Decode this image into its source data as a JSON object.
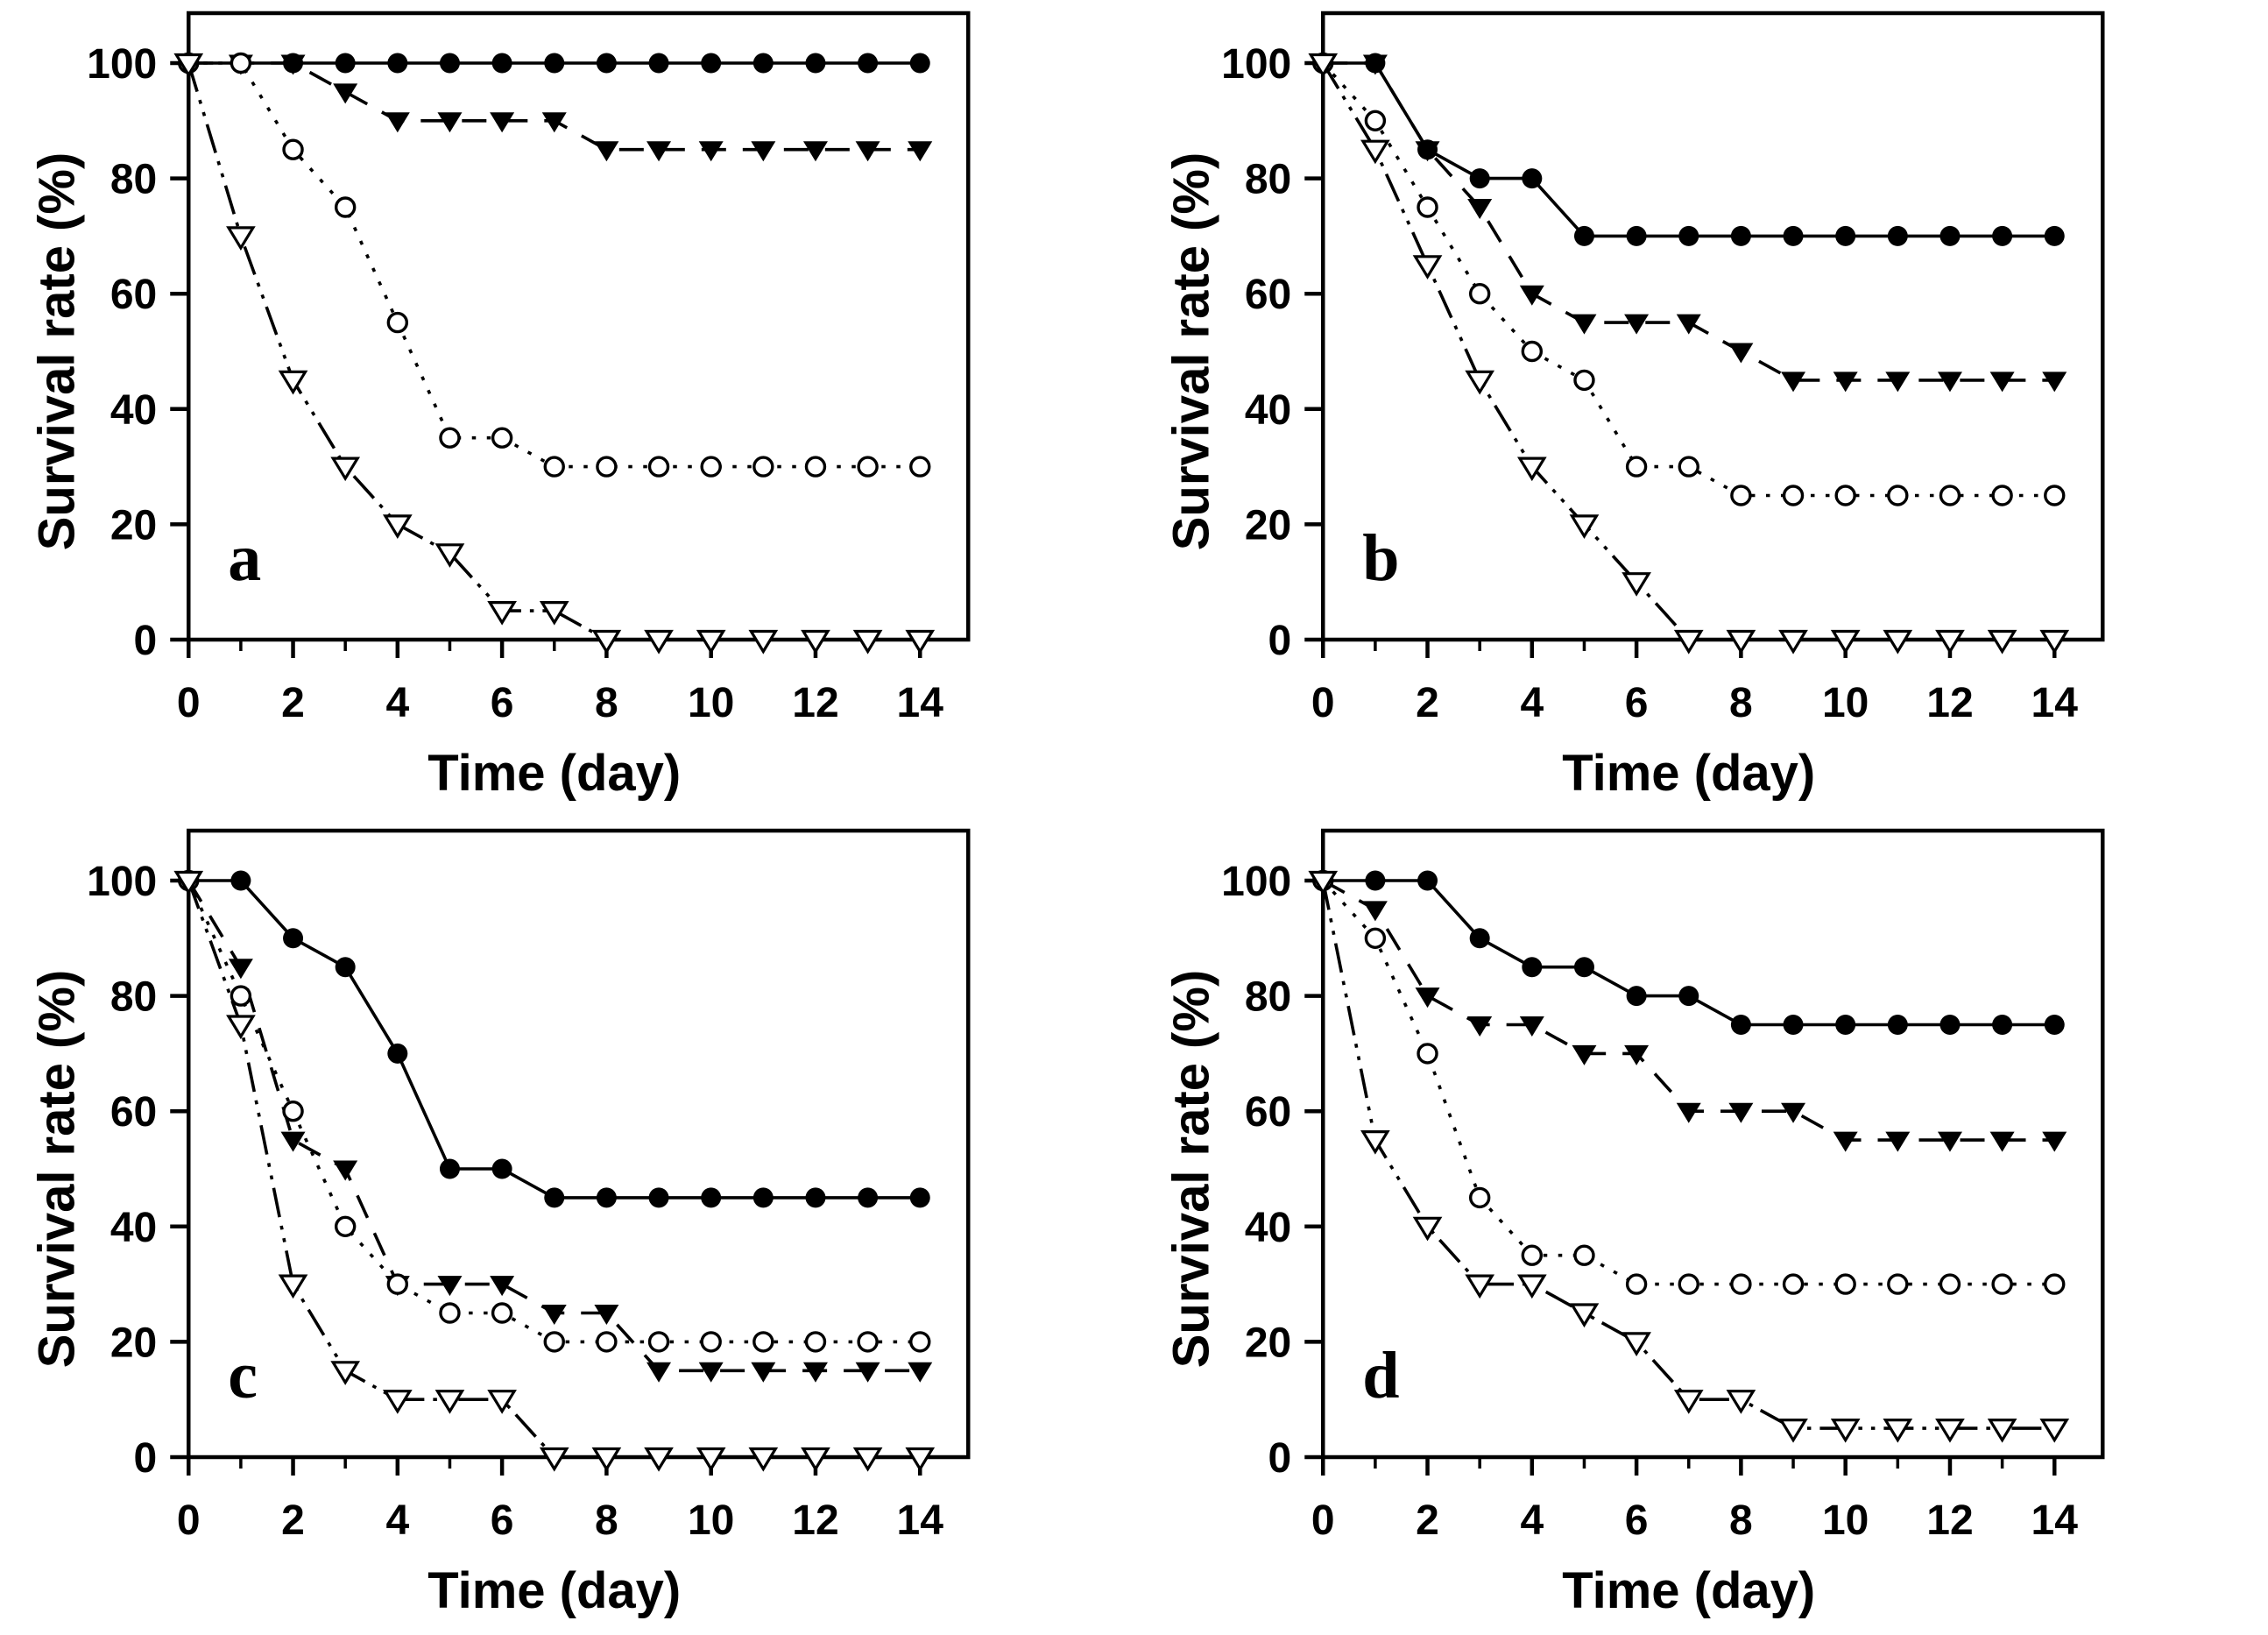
{
  "figure": {
    "ylabel": "Survival rate (%)",
    "xlabel": "Time (day)",
    "x_ticks": [
      0,
      2,
      4,
      6,
      8,
      10,
      12,
      14
    ],
    "x_minor_ticks": [
      1,
      3,
      5,
      7,
      9,
      11,
      13
    ],
    "y_ticks": [
      0,
      20,
      40,
      60,
      80,
      100
    ],
    "xlim": [
      0,
      14
    ],
    "ylim": [
      0,
      100
    ],
    "ink_color": "#000000",
    "background_color": "#ffffff"
  },
  "chart_data": [
    {
      "type": "line",
      "panel_label": "a",
      "title": "",
      "xlabel": "Time (day)",
      "ylabel": "Survival rate (%)",
      "x": [
        0,
        1,
        2,
        3,
        4,
        5,
        6,
        7,
        8,
        9,
        10,
        11,
        12,
        13,
        14
      ],
      "series": [
        {
          "name": "filled-circle-group",
          "marker": "filled-circle",
          "line": "solid",
          "values": [
            100,
            100,
            100,
            100,
            100,
            100,
            100,
            100,
            100,
            100,
            100,
            100,
            100,
            100,
            100
          ]
        },
        {
          "name": "filled-triangle-group",
          "marker": "filled-triangle-down",
          "line": "dash",
          "values": [
            100,
            100,
            100,
            95,
            90,
            90,
            90,
            90,
            85,
            85,
            85,
            85,
            85,
            85,
            85
          ]
        },
        {
          "name": "open-circle-group",
          "marker": "open-circle",
          "line": "dot",
          "values": [
            100,
            100,
            85,
            75,
            55,
            35,
            35,
            30,
            30,
            30,
            30,
            30,
            30,
            30,
            30
          ]
        },
        {
          "name": "open-triangle-group",
          "marker": "open-triangle-down",
          "line": "dash-dot-dot",
          "values": [
            100,
            70,
            45,
            30,
            20,
            15,
            5,
            5,
            0,
            0,
            0,
            0,
            0,
            0,
            0
          ]
        }
      ]
    },
    {
      "type": "line",
      "panel_label": "b",
      "title": "",
      "xlabel": "Time (day)",
      "ylabel": "Survival rate (%)",
      "x": [
        0,
        1,
        2,
        3,
        4,
        5,
        6,
        7,
        8,
        9,
        10,
        11,
        12,
        13,
        14
      ],
      "series": [
        {
          "name": "filled-circle-group",
          "marker": "filled-circle",
          "line": "solid",
          "values": [
            100,
            100,
            85,
            80,
            80,
            70,
            70,
            70,
            70,
            70,
            70,
            70,
            70,
            70,
            70
          ]
        },
        {
          "name": "filled-triangle-group",
          "marker": "filled-triangle-down",
          "line": "dash",
          "values": [
            100,
            100,
            85,
            75,
            60,
            55,
            55,
            55,
            50,
            45,
            45,
            45,
            45,
            45,
            45
          ]
        },
        {
          "name": "open-circle-group",
          "marker": "open-circle",
          "line": "dot",
          "values": [
            100,
            90,
            75,
            60,
            50,
            45,
            30,
            30,
            25,
            25,
            25,
            25,
            25,
            25,
            25
          ]
        },
        {
          "name": "open-triangle-group",
          "marker": "open-triangle-down",
          "line": "dash-dot-dot",
          "values": [
            100,
            85,
            65,
            45,
            30,
            20,
            10,
            0,
            0,
            0,
            0,
            0,
            0,
            0,
            0
          ]
        }
      ]
    },
    {
      "type": "line",
      "panel_label": "c",
      "title": "",
      "xlabel": "Time (day)",
      "ylabel": "Survival rate (%)",
      "x": [
        0,
        1,
        2,
        3,
        4,
        5,
        6,
        7,
        8,
        9,
        10,
        11,
        12,
        13,
        14
      ],
      "series": [
        {
          "name": "filled-circle-group",
          "marker": "filled-circle",
          "line": "solid",
          "values": [
            100,
            100,
            90,
            85,
            70,
            50,
            50,
            45,
            45,
            45,
            45,
            45,
            45,
            45,
            45
          ]
        },
        {
          "name": "filled-triangle-group",
          "marker": "filled-triangle-down",
          "line": "dash",
          "values": [
            100,
            85,
            55,
            50,
            30,
            30,
            30,
            25,
            25,
            15,
            15,
            15,
            15,
            15,
            15
          ]
        },
        {
          "name": "open-circle-group",
          "marker": "open-circle",
          "line": "dot",
          "values": [
            100,
            80,
            60,
            40,
            30,
            25,
            25,
            20,
            20,
            20,
            20,
            20,
            20,
            20,
            20
          ]
        },
        {
          "name": "open-triangle-group",
          "marker": "open-triangle-down",
          "line": "dash-dot-dot",
          "values": [
            100,
            75,
            30,
            15,
            10,
            10,
            10,
            0,
            0,
            0,
            0,
            0,
            0,
            0,
            0
          ]
        }
      ]
    },
    {
      "type": "line",
      "panel_label": "d",
      "title": "",
      "xlabel": "Time (day)",
      "ylabel": "Survival rate (%)",
      "x": [
        0,
        1,
        2,
        3,
        4,
        5,
        6,
        7,
        8,
        9,
        10,
        11,
        12,
        13,
        14
      ],
      "series": [
        {
          "name": "filled-circle-group",
          "marker": "filled-circle",
          "line": "solid",
          "values": [
            100,
            100,
            100,
            90,
            85,
            85,
            80,
            80,
            75,
            75,
            75,
            75,
            75,
            75,
            75
          ]
        },
        {
          "name": "filled-triangle-group",
          "marker": "filled-triangle-down",
          "line": "dash",
          "values": [
            100,
            95,
            80,
            75,
            75,
            70,
            70,
            60,
            60,
            60,
            55,
            55,
            55,
            55,
            55
          ]
        },
        {
          "name": "open-circle-group",
          "marker": "open-circle",
          "line": "dot",
          "values": [
            100,
            90,
            70,
            45,
            35,
            35,
            30,
            30,
            30,
            30,
            30,
            30,
            30,
            30,
            30
          ]
        },
        {
          "name": "open-triangle-group",
          "marker": "open-triangle-down",
          "line": "dash-dot-dot",
          "values": [
            100,
            55,
            40,
            30,
            30,
            25,
            20,
            10,
            10,
            5,
            5,
            5,
            5,
            5,
            5
          ]
        }
      ]
    }
  ]
}
